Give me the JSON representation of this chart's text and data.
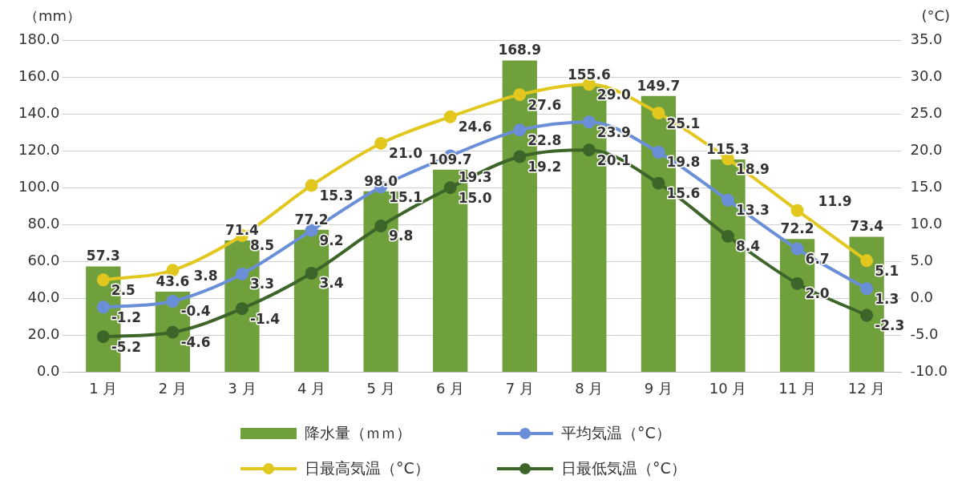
{
  "chart_data": {
    "type": "bar",
    "ylabel": "（mm）",
    "y2label": "(°C)",
    "categories": [
      "1 月",
      "2 月",
      "3 月",
      "4 月",
      "5 月",
      "6 月",
      "7 月",
      "8 月",
      "9 月",
      "10 月",
      "11 月",
      "12 月"
    ],
    "ylim": [
      0,
      180
    ],
    "yticks": [
      {
        "value": 0,
        "label": "0.0"
      },
      {
        "value": 20,
        "label": "20.0"
      },
      {
        "value": 40,
        "label": "40.0"
      },
      {
        "value": 60,
        "label": "60.0"
      },
      {
        "value": 80,
        "label": "80.0"
      },
      {
        "value": 100,
        "label": "100.0"
      },
      {
        "value": 120,
        "label": "120.0"
      },
      {
        "value": 140,
        "label": "140.0"
      },
      {
        "value": 160,
        "label": "160.0"
      },
      {
        "value": 180,
        "label": "180.0"
      }
    ],
    "y2lim": [
      -10,
      35
    ],
    "y2ticks": [
      {
        "value": -10,
        "label": "-10.0"
      },
      {
        "value": -5,
        "label": "-5.0"
      },
      {
        "value": 0,
        "label": "0.0"
      },
      {
        "value": 5,
        "label": "5.0"
      },
      {
        "value": 10,
        "label": "10.0"
      },
      {
        "value": 15,
        "label": "15.0"
      },
      {
        "value": 20,
        "label": "20.0"
      },
      {
        "value": 25,
        "label": "25.0"
      },
      {
        "value": 30,
        "label": "30.0"
      },
      {
        "value": 35,
        "label": "35.0"
      }
    ],
    "grid": "y",
    "legend": "bottom",
    "marker": "circle",
    "line_style": "solid",
    "series": [
      {
        "name": "降水量（ｍｍ）",
        "type": "bar",
        "color": "#70a03c",
        "values": [
          57.3,
          43.6,
          71.4,
          77.2,
          98.0,
          109.7,
          168.9,
          155.6,
          149.7,
          115.3,
          72.2,
          73.4
        ],
        "value_labels": [
          "57.3",
          "43.6",
          "71.4",
          "77.2",
          "98.0",
          "109.7",
          "168.9",
          "155.6",
          "149.7",
          "115.3",
          "72.2",
          "73.4"
        ]
      },
      {
        "name": "平均気温（°C）",
        "type": "line",
        "axis": "y2",
        "color": "#6a8fd8",
        "values": [
          -1.2,
          -0.4,
          3.3,
          9.2,
          15.1,
          19.3,
          22.8,
          23.9,
          19.8,
          13.3,
          6.7,
          1.3
        ],
        "value_labels": [
          "-1.2",
          "-0.4",
          "3.3",
          "9.2",
          "15.1",
          "19.3",
          "22.8",
          "23.9",
          "19.8",
          "13.3",
          "6.7",
          "1.3"
        ]
      },
      {
        "name": "日最高気温（°C）",
        "type": "line",
        "axis": "y2",
        "color": "#e2c81e",
        "values": [
          2.5,
          3.8,
          8.5,
          15.3,
          21.0,
          24.6,
          27.6,
          29.0,
          25.1,
          18.9,
          11.9,
          5.1
        ],
        "value_labels": [
          "2.5",
          "3.8",
          "8.5",
          "15.3",
          "21.0",
          "24.6",
          "27.6",
          "29.0",
          "25.1",
          "18.9",
          "11.9",
          "5.1"
        ]
      },
      {
        "name": "日最低気温（°C）",
        "type": "line",
        "axis": "y2",
        "color": "#3d6529",
        "values": [
          -5.2,
          -4.6,
          -1.4,
          3.4,
          9.8,
          15.0,
          19.2,
          20.1,
          15.6,
          8.4,
          2.0,
          -2.3
        ],
        "value_labels": [
          "-5.2",
          "-4.6",
          "-1.4",
          "3.4",
          "9.8",
          "15.0",
          "19.2",
          "20.1",
          "15.6",
          "8.4",
          "2.0",
          "-2.3"
        ]
      }
    ]
  }
}
